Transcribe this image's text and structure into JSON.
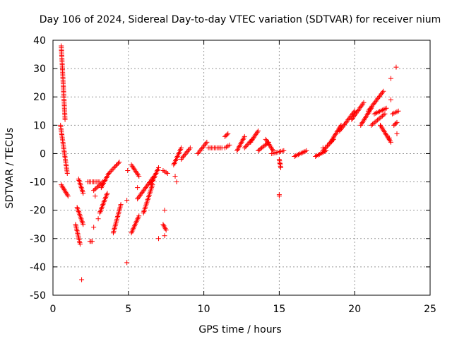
{
  "chart_data": {
    "type": "scatter",
    "title": "Day 106 of 2024, Sidereal Day-to-day VTEC variation (SDTVAR) for receiver nium",
    "xlabel": "GPS time / hours",
    "ylabel": "SDTVAR / TECUs",
    "xlim": [
      0,
      25
    ],
    "ylim": [
      -50,
      40
    ],
    "xticks": [
      0,
      5,
      10,
      15,
      20,
      25
    ],
    "yticks": [
      -50,
      -40,
      -30,
      -20,
      -10,
      0,
      10,
      20,
      30,
      40
    ],
    "grid": true,
    "marker": "+",
    "color": "#ff0000",
    "segments": [
      {
        "x": [
          0.55,
          0.8
        ],
        "y": [
          38,
          12
        ]
      },
      {
        "x": [
          0.5,
          0.95
        ],
        "y": [
          10,
          -7
        ]
      },
      {
        "x": [
          0.55,
          1.0
        ],
        "y": [
          -11,
          -15
        ]
      },
      {
        "x": [
          1.5,
          1.8
        ],
        "y": [
          -25,
          -32
        ]
      },
      {
        "x": [
          1.6,
          2.0
        ],
        "y": [
          -19,
          -25
        ]
      },
      {
        "x": [
          1.7,
          2.0
        ],
        "y": [
          -9,
          -14
        ]
      },
      {
        "x": [
          2.45,
          2.6
        ],
        "y": [
          -31,
          -31
        ]
      },
      {
        "x": [
          2.3,
          3.1
        ],
        "y": [
          -10,
          -10
        ]
      },
      {
        "x": [
          2.7,
          3.3
        ],
        "y": [
          -13,
          -10
        ]
      },
      {
        "x": [
          3.1,
          3.6
        ],
        "y": [
          -21,
          -14
        ]
      },
      {
        "x": [
          3.2,
          3.7
        ],
        "y": [
          -12,
          -7
        ]
      },
      {
        "x": [
          3.7,
          4.4
        ],
        "y": [
          -7,
          -3
        ]
      },
      {
        "x": [
          4.0,
          4.5
        ],
        "y": [
          -28,
          -18
        ]
      },
      {
        "x": [
          5.2,
          5.7
        ],
        "y": [
          -28,
          -22
        ]
      },
      {
        "x": [
          5.2,
          5.7
        ],
        "y": [
          -4,
          -8
        ]
      },
      {
        "x": [
          5.6,
          6.7
        ],
        "y": [
          -16,
          -8
        ]
      },
      {
        "x": [
          6.0,
          6.6
        ],
        "y": [
          -21,
          -11
        ]
      },
      {
        "x": [
          6.5,
          7.0
        ],
        "y": [
          -11,
          -5
        ]
      },
      {
        "x": [
          7.3,
          7.5
        ],
        "y": [
          -25,
          -27
        ]
      },
      {
        "x": [
          7.3,
          7.6
        ],
        "y": [
          -6,
          -7
        ]
      },
      {
        "x": [
          8.0,
          8.5
        ],
        "y": [
          -4,
          2
        ]
      },
      {
        "x": [
          8.5,
          9.1
        ],
        "y": [
          -2,
          2
        ]
      },
      {
        "x": [
          9.6,
          10.2
        ],
        "y": [
          0,
          4
        ]
      },
      {
        "x": [
          10.3,
          11.2
        ],
        "y": [
          2,
          2
        ]
      },
      {
        "x": [
          11.4,
          11.6
        ],
        "y": [
          6,
          7
        ]
      },
      {
        "x": [
          11.4,
          11.7
        ],
        "y": [
          2,
          3
        ]
      },
      {
        "x": [
          12.2,
          12.7
        ],
        "y": [
          1,
          6
        ]
      },
      {
        "x": [
          12.7,
          13.2
        ],
        "y": [
          2,
          5
        ]
      },
      {
        "x": [
          13.1,
          13.6
        ],
        "y": [
          4,
          8
        ]
      },
      {
        "x": [
          13.6,
          14.3
        ],
        "y": [
          1,
          4
        ]
      },
      {
        "x": [
          14.1,
          14.6
        ],
        "y": [
          5,
          1
        ]
      },
      {
        "x": [
          14.5,
          15.3
        ],
        "y": [
          0,
          1
        ]
      },
      {
        "x": [
          15.0,
          15.1
        ],
        "y": [
          -2,
          -5
        ]
      },
      {
        "x": [
          16.0,
          16.8
        ],
        "y": [
          -1,
          1
        ]
      },
      {
        "x": [
          17.4,
          18.1
        ],
        "y": [
          -1,
          1
        ]
      },
      {
        "x": [
          17.9,
          18.6
        ],
        "y": [
          1,
          5
        ]
      },
      {
        "x": [
          18.4,
          19.1
        ],
        "y": [
          4,
          10
        ]
      },
      {
        "x": [
          19.0,
          20.0
        ],
        "y": [
          8,
          15
        ]
      },
      {
        "x": [
          19.8,
          20.6
        ],
        "y": [
          12,
          18
        ]
      },
      {
        "x": [
          20.4,
          21.1
        ],
        "y": [
          10,
          16
        ]
      },
      {
        "x": [
          20.9,
          21.9
        ],
        "y": [
          15,
          22
        ]
      },
      {
        "x": [
          21.1,
          22.0
        ],
        "y": [
          10,
          14
        ]
      },
      {
        "x": [
          21.3,
          22.1
        ],
        "y": [
          14,
          16
        ]
      },
      {
        "x": [
          21.7,
          22.4
        ],
        "y": [
          10,
          4
        ]
      },
      {
        "x": [
          22.5,
          22.9
        ],
        "y": [
          14,
          15
        ]
      },
      {
        "x": [
          22.6,
          22.8
        ],
        "y": [
          10,
          11
        ]
      }
    ],
    "points": [
      {
        "x": 1.9,
        "y": -44.5
      },
      {
        "x": 4.9,
        "y": -38.5
      },
      {
        "x": 4.9,
        "y": -16.5
      },
      {
        "x": 7.0,
        "y": -30
      },
      {
        "x": 7.4,
        "y": -29
      },
      {
        "x": 7.4,
        "y": -20
      },
      {
        "x": 8.2,
        "y": -10
      },
      {
        "x": 8.1,
        "y": -8
      },
      {
        "x": 15.0,
        "y": -15
      },
      {
        "x": 15.0,
        "y": -14.5
      },
      {
        "x": 2.7,
        "y": -26
      },
      {
        "x": 3.0,
        "y": -23
      },
      {
        "x": 2.8,
        "y": -15
      },
      {
        "x": 4.95,
        "y": -6
      },
      {
        "x": 5.6,
        "y": -12
      },
      {
        "x": 22.75,
        "y": 30.5
      },
      {
        "x": 22.4,
        "y": 26.5
      },
      {
        "x": 22.4,
        "y": 19
      },
      {
        "x": 22.3,
        "y": 5.5
      },
      {
        "x": 22.8,
        "y": 7
      },
      {
        "x": 18.2,
        "y": 3
      },
      {
        "x": 17.9,
        "y": 2
      }
    ]
  }
}
